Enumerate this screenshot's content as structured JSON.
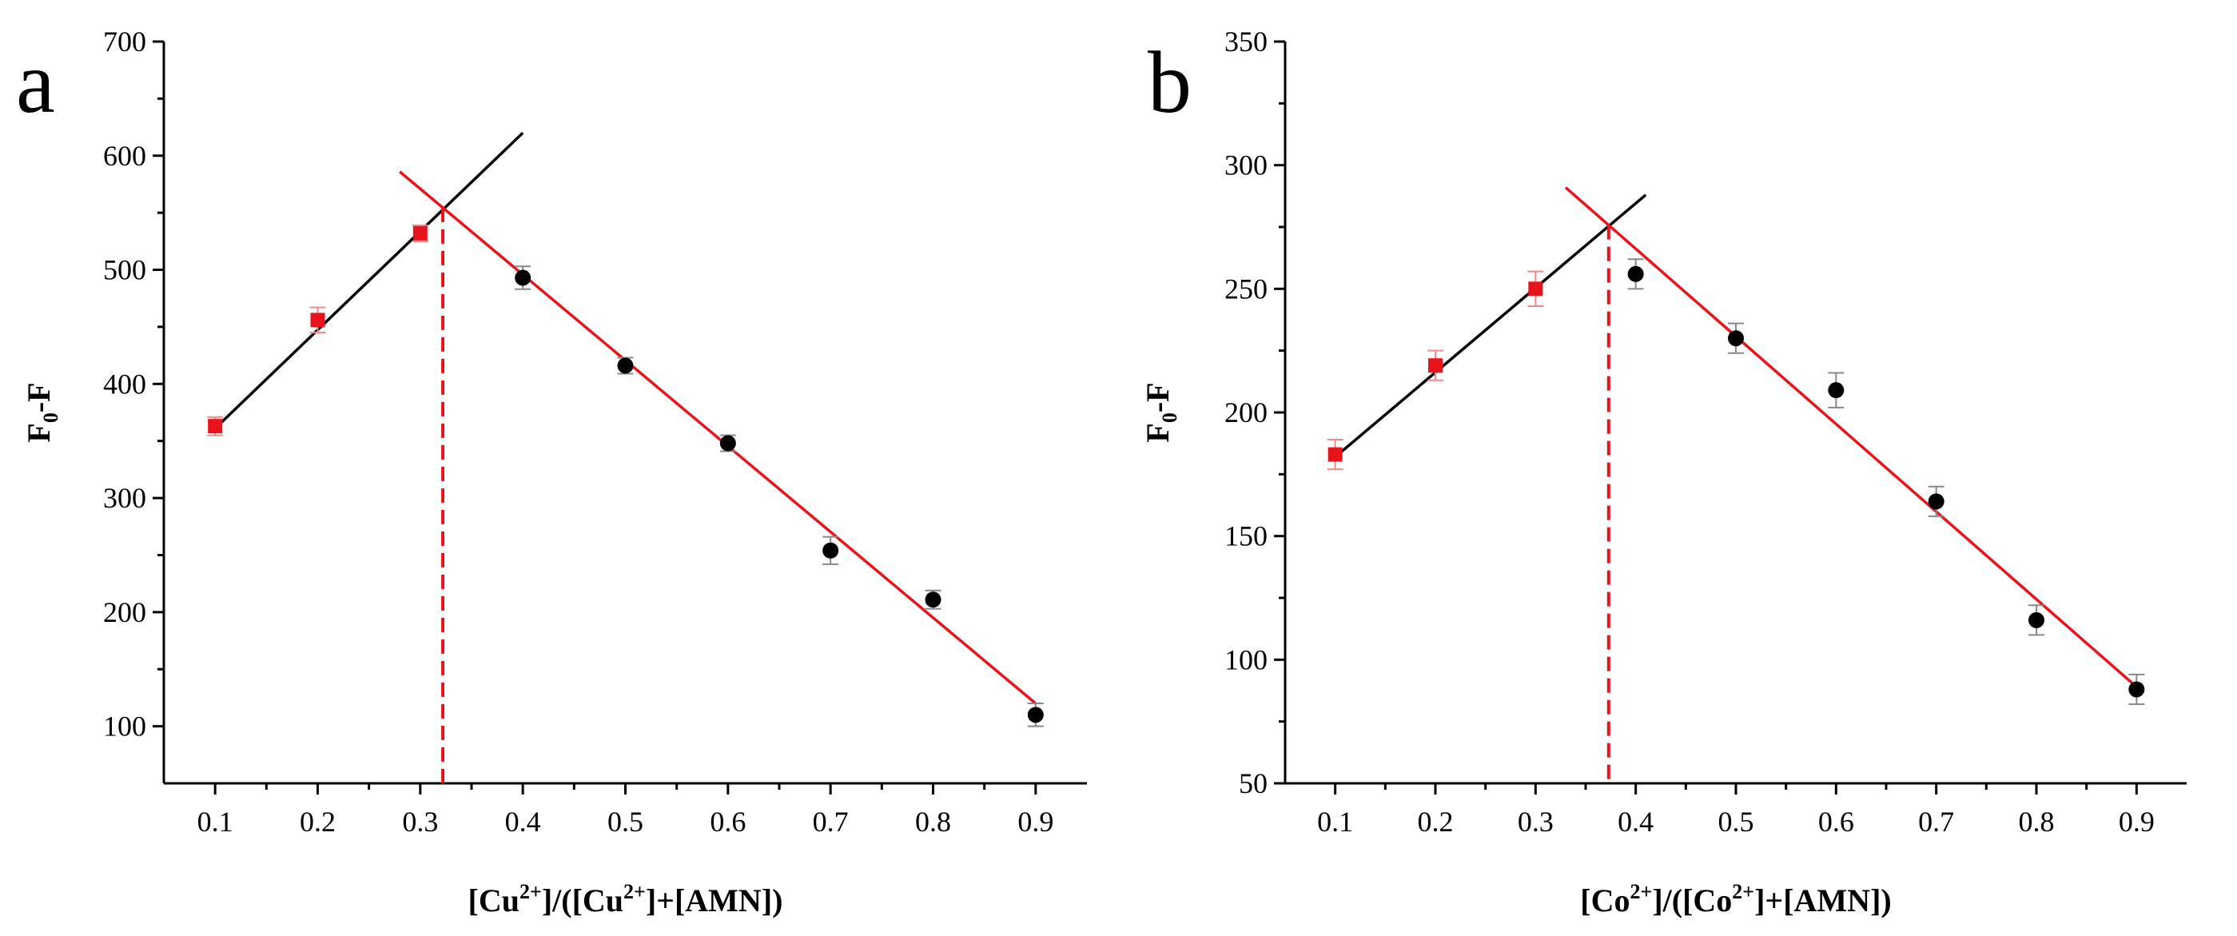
{
  "chart_data": [
    {
      "type": "scatter",
      "panel_label": "a",
      "xlabel": {
        "main": "[Cu",
        "sup1": "2+",
        "mid": "]/([Cu",
        "sup2": "2+",
        "tail": "]+[AMN])"
      },
      "ylabel": {
        "main": "F",
        "sub": "0",
        "tail": "-F"
      },
      "xlim": [
        0.05,
        0.95
      ],
      "ylim": [
        50,
        700
      ],
      "xticks": [
        0.1,
        0.2,
        0.3,
        0.4,
        0.5,
        0.6,
        0.7,
        0.8,
        0.9
      ],
      "xtick_labels": [
        "0.1",
        "0.2",
        "0.3",
        "0.4",
        "0.5",
        "0.6",
        "0.7",
        "0.8",
        "0.9"
      ],
      "yticks": [
        100,
        200,
        300,
        400,
        500,
        600,
        700
      ],
      "ytick_labels": [
        "100",
        "200",
        "300",
        "400",
        "500",
        "600",
        "700"
      ],
      "series": [
        {
          "name": "red",
          "marker": "square",
          "color": "#e8141b",
          "x": [
            0.1,
            0.2,
            0.3
          ],
          "y": [
            363,
            456,
            532
          ],
          "err": [
            8,
            11,
            7
          ]
        },
        {
          "name": "black",
          "marker": "circle",
          "color": "#000000",
          "x": [
            0.4,
            0.5,
            0.6,
            0.7,
            0.8,
            0.9
          ],
          "y": [
            493,
            416,
            348,
            254,
            211,
            110
          ],
          "err": [
            10,
            7,
            7,
            12,
            8,
            10
          ]
        }
      ],
      "fit_lines": [
        {
          "color": "#000000",
          "x": [
            0.1,
            0.4
          ],
          "y": [
            361,
            620
          ]
        },
        {
          "color": "#e8141b",
          "x": [
            0.28,
            0.9
          ],
          "y": [
            586,
            120
          ]
        }
      ],
      "vline": {
        "x": 0.322,
        "color": "#e8141b"
      }
    },
    {
      "type": "scatter",
      "panel_label": "b",
      "xlabel": {
        "main": "[Co",
        "sup1": "2+",
        "mid": "]/([Co",
        "sup2": "2+",
        "tail": "]+[AMN])"
      },
      "ylabel": {
        "main": "F",
        "sub": "0",
        "tail": "-F"
      },
      "xlim": [
        0.05,
        0.95
      ],
      "ylim": [
        50,
        350
      ],
      "xticks": [
        0.1,
        0.2,
        0.3,
        0.4,
        0.5,
        0.6,
        0.7,
        0.8,
        0.9
      ],
      "xtick_labels": [
        "0.1",
        "0.2",
        "0.3",
        "0.4",
        "0.5",
        "0.6",
        "0.7",
        "0.8",
        "0.9"
      ],
      "yticks": [
        50,
        100,
        150,
        200,
        250,
        300,
        350
      ],
      "ytick_labels": [
        "50",
        "100",
        "150",
        "200",
        "250",
        "300",
        "350"
      ],
      "series": [
        {
          "name": "red",
          "marker": "square",
          "color": "#e8141b",
          "x": [
            0.1,
            0.2,
            0.3
          ],
          "y": [
            183,
            219,
            250
          ],
          "err": [
            6,
            6,
            7
          ]
        },
        {
          "name": "black",
          "marker": "circle",
          "color": "#000000",
          "x": [
            0.4,
            0.5,
            0.6,
            0.7,
            0.8,
            0.9
          ],
          "y": [
            256,
            230,
            209,
            164,
            116,
            88
          ],
          "err": [
            6,
            6,
            7,
            6,
            6,
            6
          ]
        }
      ],
      "fit_lines": [
        {
          "color": "#000000",
          "x": [
            0.1,
            0.41
          ],
          "y": [
            182,
            288
          ]
        },
        {
          "color": "#e8141b",
          "x": [
            0.33,
            0.9
          ],
          "y": [
            291,
            89
          ]
        }
      ],
      "vline": {
        "x": 0.373,
        "color": "#e8141b"
      }
    }
  ]
}
